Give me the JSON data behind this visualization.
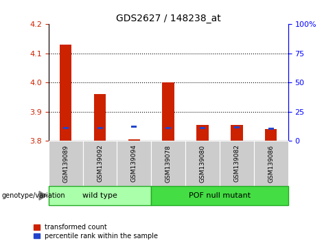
{
  "title": "GDS2627 / 148238_at",
  "samples": [
    "GSM139089",
    "GSM139092",
    "GSM139094",
    "GSM139078",
    "GSM139080",
    "GSM139082",
    "GSM139086"
  ],
  "red_values": [
    4.13,
    3.96,
    3.805,
    4.0,
    3.855,
    3.855,
    3.84
  ],
  "blue_values": [
    3.845,
    3.845,
    3.848,
    3.845,
    3.845,
    3.846,
    3.842
  ],
  "baseline": 3.8,
  "ylim_left": [
    3.8,
    4.2
  ],
  "ylim_right": [
    0,
    100
  ],
  "yticks_left": [
    3.8,
    3.9,
    4.0,
    4.1,
    4.2
  ],
  "yticks_right": [
    0,
    25,
    50,
    75,
    100
  ],
  "yticklabels_right": [
    "0",
    "25",
    "50",
    "75",
    "100%"
  ],
  "red_color": "#cc2200",
  "blue_color": "#2244cc",
  "bar_width": 0.35,
  "groups": [
    {
      "label": "wild type",
      "indices": [
        0,
        1,
        2
      ],
      "color": "#aaffaa"
    },
    {
      "label": "POF null mutant",
      "indices": [
        3,
        4,
        5,
        6
      ],
      "color": "#44dd44"
    }
  ],
  "group_label_prefix": "genotype/variation",
  "legend_red": "transformed count",
  "legend_blue": "percentile rank within the sample",
  "title_fontsize": 10,
  "tick_fontsize": 8,
  "sample_fontsize": 6.5,
  "group_fontsize": 8,
  "legend_fontsize": 7
}
